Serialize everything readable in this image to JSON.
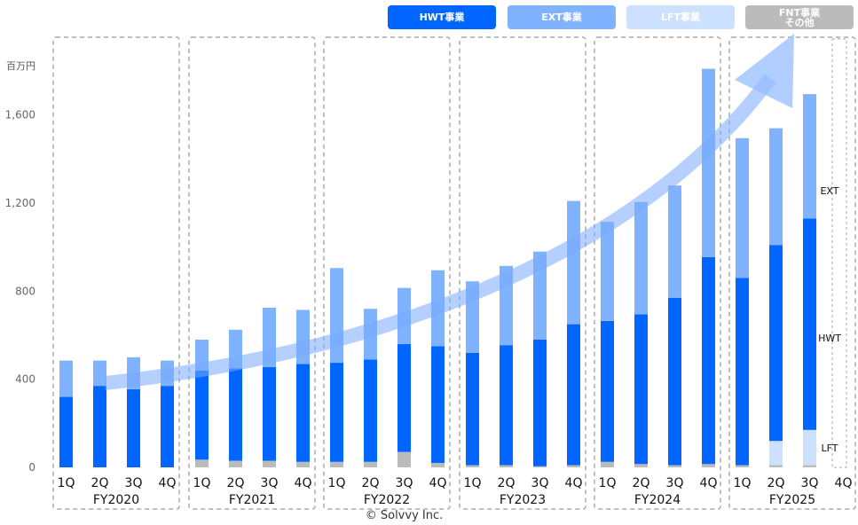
{
  "legend": [
    {
      "label": "HWT事業",
      "color": "#0066ff"
    },
    {
      "label": "EXT事業",
      "color": "#80b3ff"
    },
    {
      "label": "LFT事業",
      "color": "#cce0ff"
    },
    {
      "label": "FNT事業\nその他",
      "color": "#bbbbbb"
    }
  ],
  "copyright": "© Solvvy Inc.",
  "chart_data": {
    "type": "bar",
    "stacked": true,
    "ylabel": "百万円",
    "ylim": [
      0,
      1800
    ],
    "yticks": [
      0,
      400,
      800,
      1200,
      1600
    ],
    "ytick_labels": [
      "0",
      "400",
      "800",
      "1,200",
      "1,600"
    ],
    "groups": [
      "FY2020",
      "FY2021",
      "FY2022",
      "FY2023",
      "FY2024",
      "FY2025"
    ],
    "quarters": [
      "1Q",
      "2Q",
      "3Q",
      "4Q"
    ],
    "colors": {
      "FNT": "#bbbbbb",
      "LFT": "#cce0ff",
      "HWT": "#0066ff",
      "EXT": "#80b3ff"
    },
    "series": [
      {
        "name": "FNT事業その他",
        "key": "FNT",
        "values": [
          [
            0,
            0,
            0,
            0
          ],
          [
            35,
            30,
            30,
            25
          ],
          [
            25,
            25,
            70,
            20
          ],
          [
            10,
            10,
            5,
            10
          ],
          [
            25,
            15,
            10,
            15
          ],
          [
            10,
            10,
            10,
            null
          ]
        ]
      },
      {
        "name": "LFT事業",
        "key": "LFT",
        "values": [
          [
            0,
            0,
            0,
            0
          ],
          [
            0,
            0,
            0,
            0
          ],
          [
            0,
            0,
            0,
            0
          ],
          [
            0,
            0,
            0,
            0
          ],
          [
            0,
            0,
            0,
            0
          ],
          [
            0,
            110,
            160,
            null
          ]
        ]
      },
      {
        "name": "HWT事業",
        "key": "HWT",
        "values": [
          [
            320,
            370,
            355,
            370
          ],
          [
            405,
            420,
            425,
            445
          ],
          [
            450,
            465,
            490,
            530
          ],
          [
            510,
            545,
            575,
            640
          ],
          [
            640,
            680,
            760,
            940
          ],
          [
            850,
            890,
            960,
            null
          ]
        ]
      },
      {
        "name": "EXT事業",
        "key": "EXT",
        "values": [
          [
            165,
            115,
            145,
            115
          ],
          [
            140,
            175,
            270,
            245
          ],
          [
            430,
            230,
            255,
            345
          ],
          [
            325,
            360,
            400,
            560
          ],
          [
            450,
            510,
            510,
            855
          ],
          [
            635,
            530,
            565,
            null
          ]
        ]
      }
    ],
    "annotations": [
      "EXT",
      "HWT",
      "LFT"
    ]
  }
}
